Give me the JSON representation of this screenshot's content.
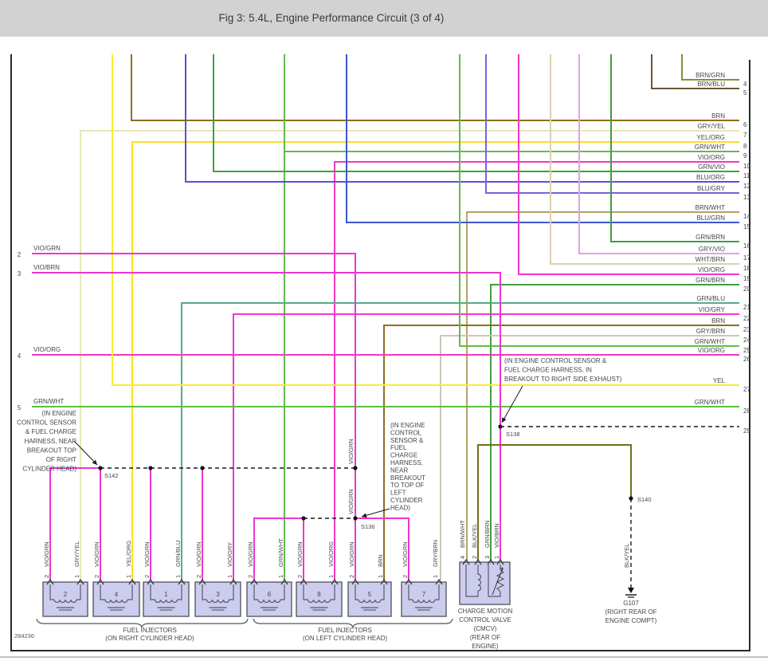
{
  "title": "Fig 3: 5.4L, Engine Performance Circuit (3 of 4)",
  "figure_code": "284236",
  "palette": {
    "VIO_GRN": "#ee35d2",
    "VIO_BRN": "#ee35d2",
    "VIO_ORG": "#f337c4",
    "VIO_GRY": "#ee35d2",
    "GRY_VIO": "#dfa3df",
    "GRY_YEL": "#e6e6b4",
    "YEL": "#fbec2f",
    "YEL_ORG": "#fee01a",
    "BRN": "#8f6e1e",
    "BRN_GRN": "#8d8d35",
    "BRN_BLU": "#6d5538",
    "BRN_WHT": "#b4a366",
    "WHT_BRN": "#dbd1ae",
    "GRY_BRN": "#cbc6b8",
    "GRN_WHT": "#62bb47",
    "GRN_VIO": "#3fa03f",
    "GRN_BRN": "#3f9e3e",
    "GRN_BLU": "#55ad85",
    "BLU_ORG": "#5a50d4",
    "BLU_GRY": "#7366dc",
    "BLU_GRN": "#3d55cf",
    "BLK_YEL": "#70701c",
    "splice": "#1a1a1a",
    "text": "#46464e",
    "box_fill": "#ccccee",
    "box_stroke": "#5a5a66",
    "border": "#2a2a2a"
  },
  "right_stubs": [
    {
      "n": "4",
      "label": "BRN/GRN",
      "color": "BRN_GRN"
    },
    {
      "n": "5",
      "label": "BRN/BLU",
      "color": "BRN_BLU"
    },
    {
      "n": "6",
      "label": "BRN",
      "color": "BRN"
    },
    {
      "n": "7",
      "label": "GRY/YEL",
      "color": "GRY_YEL"
    },
    {
      "n": "8",
      "label": "YEL/ORG",
      "color": "YEL_ORG"
    },
    {
      "n": "9",
      "label": "GRN/WHT",
      "color": "GRN_WHT"
    },
    {
      "n": "10",
      "label": "VIO/ORG",
      "color": "VIO_ORG"
    },
    {
      "n": "11",
      "label": "GRN/VIO",
      "color": "GRN_VIO"
    },
    {
      "n": "12",
      "label": "BLU/ORG",
      "color": "BLU_ORG"
    },
    {
      "n": "13",
      "label": "BLU/GRY",
      "color": "BLU_GRY"
    },
    {
      "n": "14",
      "label": "BRN/WHT",
      "color": "BRN_WHT"
    },
    {
      "n": "15",
      "label": "BLU/GRN",
      "color": "BLU_GRN"
    },
    {
      "n": "16",
      "label": "GRN/BRN",
      "color": "GRN_BRN"
    },
    {
      "n": "17",
      "label": "GRY/VIO",
      "color": "GRY_VIO"
    },
    {
      "n": "18",
      "label": "WHT/BRN",
      "color": "WHT_BRN"
    },
    {
      "n": "19",
      "label": "VIO/ORG",
      "color": "VIO_ORG"
    },
    {
      "n": "20",
      "label": "GRN/BRN",
      "color": "GRN_BRN"
    },
    {
      "n": "21",
      "label": "GRN/BLU",
      "color": "GRN_BLU"
    },
    {
      "n": "22",
      "label": "VIO/GRY",
      "color": "VIO_GRY"
    },
    {
      "n": "23",
      "label": "BRN",
      "color": "BRN"
    },
    {
      "n": "24",
      "label": "GRY/BRN",
      "color": "GRY_BRN"
    },
    {
      "n": "25",
      "label": "GRN/WHT",
      "color": "GRN_WHT"
    },
    {
      "n": "26",
      "label": "VIO/ORG",
      "color": "VIO_ORG"
    },
    {
      "n": "27",
      "label": "YEL",
      "color": "YEL"
    },
    {
      "n": "28",
      "label": "GRN/WHT",
      "color": "GRN_WHT"
    },
    {
      "n": "29",
      "label": "",
      "color": "splice"
    }
  ],
  "left_stubs": [
    {
      "n": "2",
      "label": "VIO/GRN",
      "color": "VIO_GRN"
    },
    {
      "n": "3",
      "label": "VIO/BRN",
      "color": "VIO_BRN"
    },
    {
      "n": "4",
      "label": "VIO/ORG",
      "color": "VIO_ORG"
    },
    {
      "n": "5",
      "label": "GRN/WHT",
      "color": "GRN_WHT"
    }
  ],
  "injector_groups": [
    {
      "caption": [
        "FUEL INJECTORS",
        "(ON RIGHT CYLINDER HEAD)"
      ],
      "items": [
        {
          "num": "2",
          "pins": [
            {
              "pin": "2",
              "wire": "VIO/GRN",
              "color": "VIO_GRN"
            },
            {
              "pin": "1",
              "wire": "GRY/YEL",
              "color": "GRY_YEL"
            }
          ]
        },
        {
          "num": "4",
          "pins": [
            {
              "pin": "2",
              "wire": "VIO/GRN",
              "color": "VIO_GRN"
            },
            {
              "pin": "1",
              "wire": "YEL/ORG",
              "color": "YEL_ORG"
            }
          ]
        },
        {
          "num": "1",
          "pins": [
            {
              "pin": "2",
              "wire": "VIO/GRN",
              "color": "VIO_GRN"
            },
            {
              "pin": "1",
              "wire": "GRN/BLU",
              "color": "GRN_BLU"
            }
          ]
        },
        {
          "num": "3",
          "pins": [
            {
              "pin": "2",
              "wire": "VIO/GRN",
              "color": "VIO_GRN"
            },
            {
              "pin": "1",
              "wire": "VIO/GRY",
              "color": "VIO_GRY"
            }
          ]
        }
      ]
    },
    {
      "caption": [
        "FUEL INJECTORS",
        "(ON LEFT CYLINDER HEAD)"
      ],
      "items": [
        {
          "num": "6",
          "pins": [
            {
              "pin": "2",
              "wire": "VIO/GRN",
              "color": "VIO_GRN"
            },
            {
              "pin": "1",
              "wire": "GRN/WHT",
              "color": "GRN_WHT"
            }
          ]
        },
        {
          "num": "8",
          "pins": [
            {
              "pin": "2",
              "wire": "VIO/GRN",
              "color": "VIO_GRN"
            },
            {
              "pin": "1",
              "wire": "VIO/ORG",
              "color": "VIO_ORG"
            }
          ]
        },
        {
          "num": "5",
          "pins": [
            {
              "pin": "2",
              "wire": "VIO/GRN",
              "color": "VIO_GRN"
            },
            {
              "pin": "1",
              "wire": "BRN",
              "color": "BRN"
            }
          ]
        },
        {
          "num": "7",
          "pins": [
            {
              "pin": "2",
              "wire": "VIO/GRN",
              "color": "VIO_GRN"
            },
            {
              "pin": "1",
              "wire": "GRY/BRN",
              "color": "GRY_BRN"
            }
          ]
        }
      ]
    }
  ],
  "cmcv": {
    "pins": [
      {
        "pin": "4",
        "wire": "BRN/WHT"
      },
      {
        "pin": "2",
        "wire": "BLK/YEL"
      },
      {
        "pin": "3",
        "wire": "GRN/BRN"
      },
      {
        "pin": "1",
        "wire": "VIO/BRN"
      }
    ],
    "label_lines": [
      "CHARGE MOTION",
      "CONTROL VALVE",
      "(CMCV)",
      "(REAR OF",
      "ENGINE)"
    ]
  },
  "ground": {
    "name": "G107",
    "wire": "BLK/YEL",
    "label_lines": [
      "(RIGHT REAR OF",
      "ENGINE COMPT)"
    ]
  },
  "splices": [
    {
      "id": "S142"
    },
    {
      "id": "S136"
    },
    {
      "id": "S138"
    },
    {
      "id": "S140"
    }
  ],
  "mid_labels": [
    {
      "text": "VIO/GRN"
    },
    {
      "text": "VIO/GRN"
    },
    {
      "text": "BLK/YEL"
    }
  ],
  "annotations": [
    {
      "lines": [
        "(IN ENGINE",
        "CONTROL SENSOR",
        "& FUEL CHARGE",
        "HARNESS, NEAR",
        "BREAKOUT TOP",
        "OF RIGHT",
        "CYLINDER HEAD)"
      ]
    },
    {
      "lines": [
        "(IN ENGINE",
        "CONTROL",
        "SENSOR &",
        "FUEL",
        "CHARGE",
        "HARNESS,",
        "NEAR",
        "BREAKOUT",
        "TO TOP OF",
        "LEFT",
        "CYLINDER",
        "HEAD)"
      ]
    },
    {
      "lines": [
        "(IN ENGINE CONTROL SENSOR &",
        "FUEL CHARGE HARNESS, IN",
        "BREAKOUT TO RIGHT SIDE EXHAUST)"
      ]
    }
  ]
}
